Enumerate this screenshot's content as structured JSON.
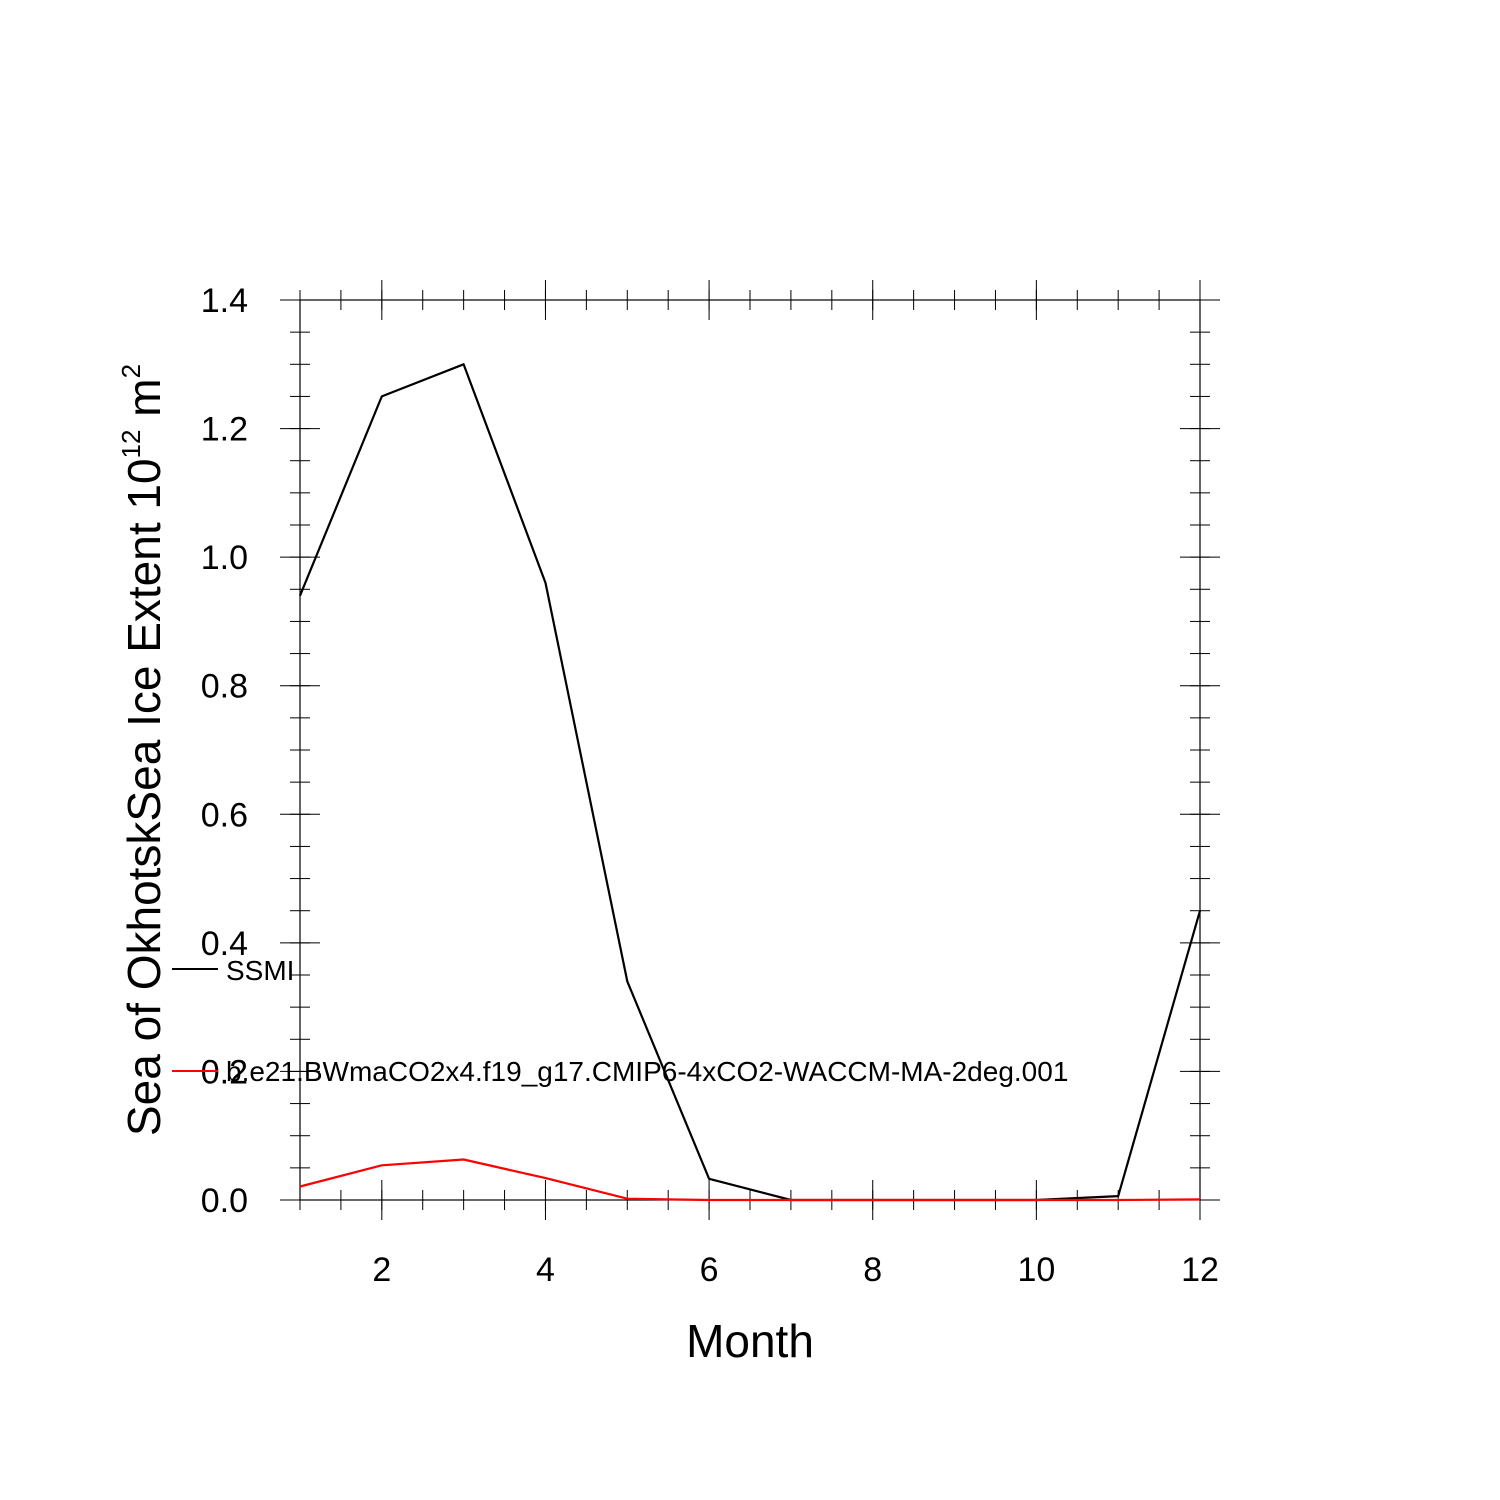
{
  "chart_data": {
    "type": "line",
    "xlabel": "Month",
    "ylabel": "Sea of OkhotskSea Ice Extent 10",
    "ylabel_sup1": "12",
    "ylabel_unit": " m",
    "ylabel_sup2": "2",
    "xlim": [
      1,
      12
    ],
    "ylim": [
      0,
      1.4
    ],
    "x_ticks": [
      2,
      4,
      6,
      8,
      10,
      12
    ],
    "x_tick_labels": [
      "2",
      "4",
      "6",
      "8",
      "10",
      "12"
    ],
    "y_ticks": [
      0,
      0.2,
      0.4,
      0.6,
      0.8,
      1.0,
      1.2,
      1.4
    ],
    "y_tick_labels": [
      "0.0",
      "0.2",
      "0.4",
      "0.6",
      "0.8",
      "1.0",
      "1.2",
      "1.4"
    ],
    "grid": false,
    "legend_placement": "left, overlapping plot area",
    "x": [
      1,
      2,
      3,
      4,
      5,
      6,
      7,
      8,
      9,
      10,
      11,
      12
    ],
    "series": [
      {
        "name": "SSMI",
        "color": "#000000",
        "values": [
          0.94,
          1.25,
          1.3,
          0.96,
          0.34,
          0.033,
          0.0,
          0.0,
          0.0,
          0.0,
          0.006,
          0.45
        ]
      },
      {
        "name": "b.e21.BWmaCO2x4.f19_g17.CMIP6-4xCO2-WACCM-MA-2deg.001",
        "color": "#ff0000",
        "values": [
          0.021,
          0.054,
          0.063,
          0.034,
          0.002,
          0.0,
          0.0,
          0.0,
          0.0,
          0.0,
          0.0,
          0.001
        ]
      }
    ]
  }
}
